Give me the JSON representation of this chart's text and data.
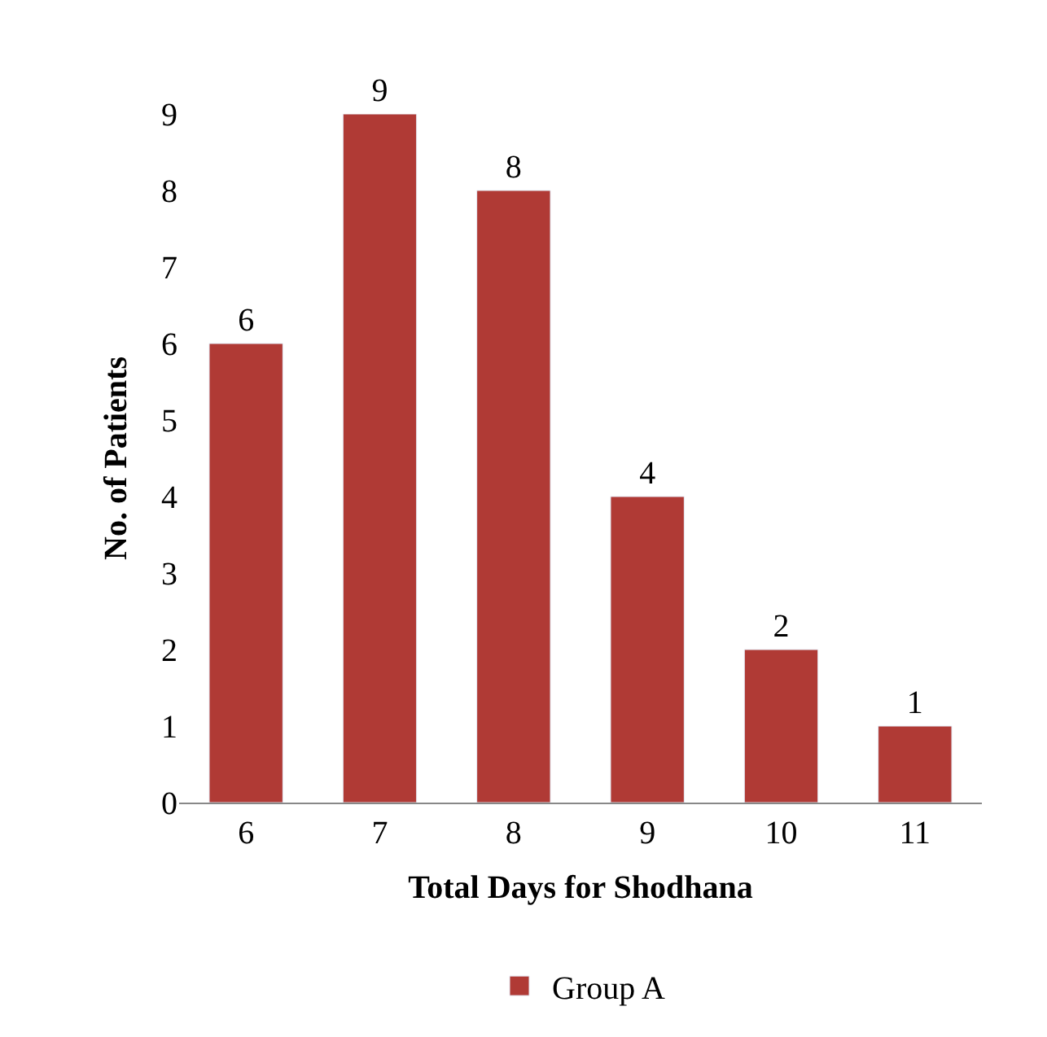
{
  "chart_data": {
    "type": "bar",
    "xlabel": "Total Days for Shodhana",
    "ylabel": "No. of Patients",
    "categories": [
      "6",
      "7",
      "8",
      "9",
      "10",
      "11"
    ],
    "series": [
      {
        "name": "Group A",
        "color": "#b03a35",
        "values": [
          6,
          9,
          8,
          4,
          2,
          1
        ]
      }
    ],
    "ylim": [
      0,
      9
    ],
    "yticks": [
      0,
      1,
      2,
      3,
      4,
      5,
      6,
      7,
      8,
      9
    ],
    "data_labels": true,
    "grid": false,
    "legend": "bottom"
  }
}
